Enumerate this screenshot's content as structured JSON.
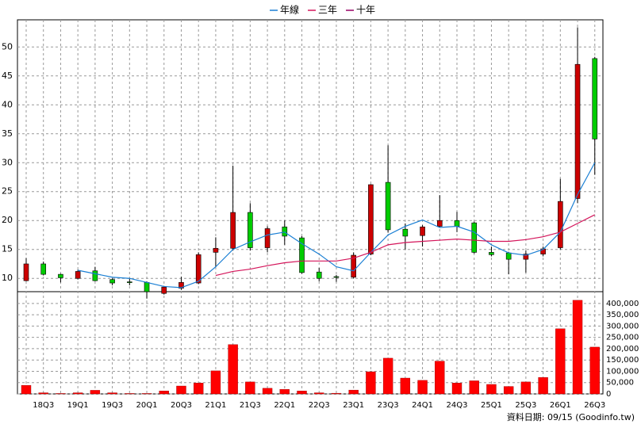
{
  "chart_data": [
    {
      "type": "candlestick",
      "categories": [
        null,
        "18Q3",
        null,
        "19Q1",
        null,
        "19Q3",
        null,
        "20Q1",
        null,
        "20Q3",
        null,
        "21Q1",
        null,
        "21Q3",
        null,
        "22Q1",
        null,
        "22Q3",
        null,
        "23Q1",
        null,
        "23Q3",
        null,
        "24Q1",
        null,
        "24Q3",
        null,
        "25Q1",
        null,
        "25Q3",
        null,
        "26Q1",
        null,
        "26Q3"
      ],
      "open": [
        9.6,
        12.5,
        10.7,
        10.0,
        11.3,
        9.8,
        9.4,
        9.3,
        7.4,
        8.3,
        9.2,
        14.5,
        15.2,
        21.4,
        15.3,
        18.9,
        17.0,
        11.1,
        10.3,
        10.2,
        14.2,
        26.6,
        18.5,
        17.4,
        19.0,
        20.0,
        19.6,
        14.5,
        14.4,
        13.3,
        14.2,
        15.3,
        23.8,
        48.0
      ],
      "high": [
        13.5,
        12.9,
        10.8,
        11.5,
        12.0,
        10.0,
        10.0,
        9.5,
        8.7,
        10.3,
        14.5,
        17.1,
        29.5,
        23.0,
        19.0,
        20.0,
        17.3,
        11.8,
        10.6,
        14.5,
        26.3,
        33.0,
        19.5,
        19.2,
        24.4,
        21.5,
        19.8,
        15.5,
        14.6,
        14.8,
        15.5,
        27.2,
        53.4,
        48.3
      ],
      "low": [
        9.5,
        10.5,
        9.3,
        9.8,
        9.5,
        8.8,
        8.8,
        6.5,
        7.2,
        8.0,
        9.0,
        12.0,
        14.8,
        14.8,
        14.5,
        15.8,
        10.8,
        9.5,
        9.4,
        10.0,
        14.0,
        17.9,
        15.0,
        15.5,
        18.8,
        18.0,
        14.3,
        13.8,
        10.7,
        11.0,
        13.8,
        15.0,
        23.0,
        27.9
      ],
      "close": [
        12.5,
        10.7,
        10.1,
        11.2,
        9.6,
        9.2,
        9.3,
        7.7,
        8.5,
        9.3,
        14.1,
        15.2,
        21.4,
        15.3,
        18.6,
        17.3,
        11.0,
        10.0,
        10.2,
        14.0,
        26.2,
        18.4,
        17.3,
        18.9,
        20.0,
        19.0,
        14.5,
        14.1,
        13.3,
        14.2,
        15.1,
        23.3,
        47.0,
        34.1
      ],
      "up_color": "#cc0000",
      "down_color": "#00cc00",
      "series": [
        {
          "name": "年線",
          "color": "#1a7fd4",
          "values": [
            null,
            null,
            null,
            11.4,
            10.8,
            10.2,
            10.0,
            9.3,
            8.6,
            8.4,
            9.5,
            12.0,
            15.0,
            16.3,
            17.5,
            18.0,
            16.0,
            14.2,
            12.0,
            11.3,
            14.5,
            17.5,
            19.0,
            20.1,
            18.8,
            19.0,
            18.0,
            15.8,
            14.4,
            14.0,
            15.0,
            18.0,
            24.5,
            30.0
          ]
        },
        {
          "name": "三年",
          "color": "#d4145a",
          "values": [
            null,
            null,
            null,
            null,
            null,
            null,
            null,
            null,
            null,
            null,
            null,
            10.5,
            11.2,
            11.6,
            12.2,
            12.7,
            13.0,
            13.0,
            13.0,
            13.5,
            14.5,
            15.8,
            16.2,
            16.4,
            16.6,
            16.8,
            16.6,
            16.4,
            16.4,
            16.7,
            17.2,
            18.0,
            19.5,
            21.0
          ]
        },
        {
          "name": "十年",
          "color": "#990066",
          "values": [
            null,
            null,
            null,
            null,
            null,
            null,
            null,
            null,
            null,
            null,
            null,
            null,
            null,
            null,
            null,
            null,
            null,
            null,
            null,
            null,
            null,
            null,
            null,
            null,
            null,
            null,
            null,
            null,
            null,
            null,
            null,
            null,
            null,
            null
          ]
        }
      ],
      "ylim": [
        7.7,
        54.7
      ],
      "yticks": [
        10,
        15,
        20,
        25,
        30,
        35,
        40,
        45,
        50
      ],
      "grid": true,
      "footer": "資料日期: 09/15 (Goodinfo.tw)"
    },
    {
      "type": "bar",
      "color": "#ff0000",
      "values": [
        38000,
        5000,
        2000,
        5000,
        16000,
        5000,
        2000,
        2000,
        13000,
        35000,
        48000,
        102000,
        218000,
        53000,
        25000,
        20000,
        13000,
        5000,
        3000,
        17000,
        98000,
        158000,
        70000,
        60000,
        145000,
        48000,
        58000,
        42000,
        33000,
        53000,
        73000,
        288000,
        414000,
        207000
      ],
      "ylim": [
        0,
        452000
      ],
      "yticks": [
        {
          "value": 0,
          "label": "0"
        },
        {
          "value": 50000,
          "label": "50,000"
        },
        {
          "value": 100000,
          "label": "100,000"
        },
        {
          "value": 150000,
          "label": "150,000"
        },
        {
          "value": 200000,
          "label": "200,000"
        },
        {
          "value": 250000,
          "label": "250,000"
        },
        {
          "value": 300000,
          "label": "300,000"
        },
        {
          "value": 350000,
          "label": "350,000"
        },
        {
          "value": 400000,
          "label": "400,000"
        }
      ],
      "grid": true
    }
  ]
}
